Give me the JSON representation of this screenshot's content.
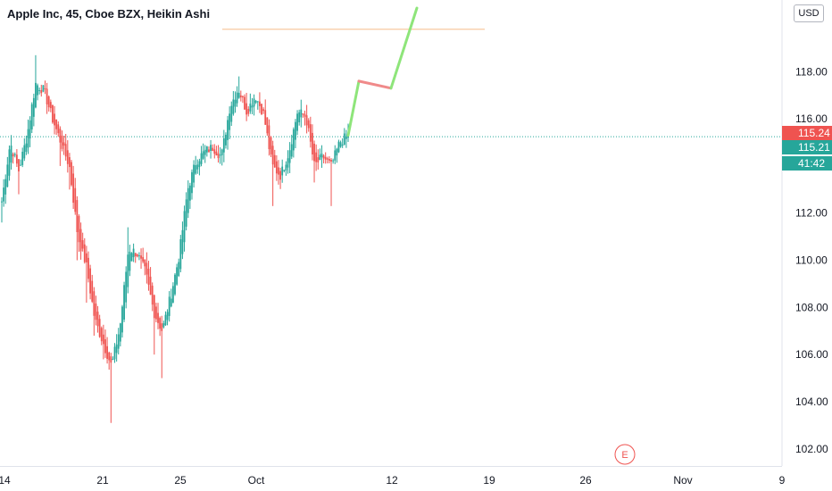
{
  "header": {
    "title": "Apple Inc, 45, Cboe BZX, Heikin Ashi",
    "currency": "USD"
  },
  "colors": {
    "up": "#26a69a",
    "down": "#ef5350",
    "projection_up": "#8ee57a",
    "projection_down": "#f08a8a",
    "hline": "#f7c9a1",
    "price_line": "#26a69a"
  },
  "chart_data": {
    "type": "candlestick",
    "title": "Apple Inc, 45, Cboe BZX, Heikin Ashi",
    "ylim": [
      101.5,
      120.7
    ],
    "y_ticks": [
      "102.00",
      "104.00",
      "106.00",
      "108.00",
      "110.00",
      "112.00",
      "114.00",
      "116.00",
      "118.00"
    ],
    "x_ticks": [
      "14",
      "21",
      "25",
      "Oct",
      "12",
      "19",
      "26",
      "Nov",
      "9"
    ],
    "price_tags": [
      {
        "label": "115.24",
        "value": 115.24,
        "color": "#ef5350"
      },
      {
        "label": "115.21",
        "value": 115.21,
        "color": "#26a69a"
      },
      {
        "label": "41:42",
        "value": 114.55,
        "color": "#26a69a"
      }
    ],
    "current_price": 115.24,
    "horizontal_line": {
      "value": 119.8
    },
    "projection": [
      {
        "from": [
          115.3,
          "Oct 9"
        ],
        "to": [
          117.6,
          "Oct 9"
        ],
        "direction": "up"
      },
      {
        "from": [
          117.6,
          "Oct 10"
        ],
        "to": [
          117.3,
          "Oct 12"
        ],
        "direction": "down"
      },
      {
        "from": [
          117.3,
          "Oct 12"
        ],
        "to": [
          120.7,
          "Oct 13"
        ],
        "direction": "up"
      }
    ],
    "anchors": [
      {
        "c": 112.5,
        "l": 111.6
      },
      {
        "c": 115.0
      },
      {
        "c": 113.8,
        "l": 112.8
      },
      {
        "c": 115.3
      },
      {
        "c": 117.5,
        "h": 118.7
      },
      {
        "c": 117.2
      },
      {
        "c": 116.0
      },
      {
        "c": 115.0,
        "l": 114.0
      },
      {
        "c": 114.0,
        "l": 113.0
      },
      {
        "c": 111.0,
        "l": 110.0
      },
      {
        "c": 109.8,
        "l": 108.2
      },
      {
        "c": 107.5,
        "l": 106.8
      },
      {
        "c": 106.5,
        "l": 105.8
      },
      {
        "c": 105.5,
        "l": 103.1
      },
      {
        "c": 107.2
      },
      {
        "c": 110.5,
        "h": 111.4
      },
      {
        "c": 110.3
      },
      {
        "c": 109.5
      },
      {
        "c": 107.8,
        "l": 106.0
      },
      {
        "c": 107.0,
        "l": 105.0
      },
      {
        "c": 108.5
      },
      {
        "c": 110.2
      },
      {
        "c": 113.0
      },
      {
        "c": 114.2
      },
      {
        "c": 114.6
      },
      {
        "c": 114.8
      },
      {
        "c": 114.4
      },
      {
        "c": 116.5
      },
      {
        "c": 117.3,
        "h": 117.8
      },
      {
        "c": 116.3
      },
      {
        "c": 117.0
      },
      {
        "c": 116.2
      },
      {
        "c": 114.0,
        "l": 112.3
      },
      {
        "c": 113.6
      },
      {
        "c": 114.6
      },
      {
        "c": 116.3
      },
      {
        "c": 116.1
      },
      {
        "c": 114.0,
        "l": 113.3
      },
      {
        "c": 114.4
      },
      {
        "c": 114.0,
        "l": 112.3
      },
      {
        "c": 115.0
      },
      {
        "c": 115.3
      }
    ]
  },
  "badge": {
    "label": "E"
  }
}
